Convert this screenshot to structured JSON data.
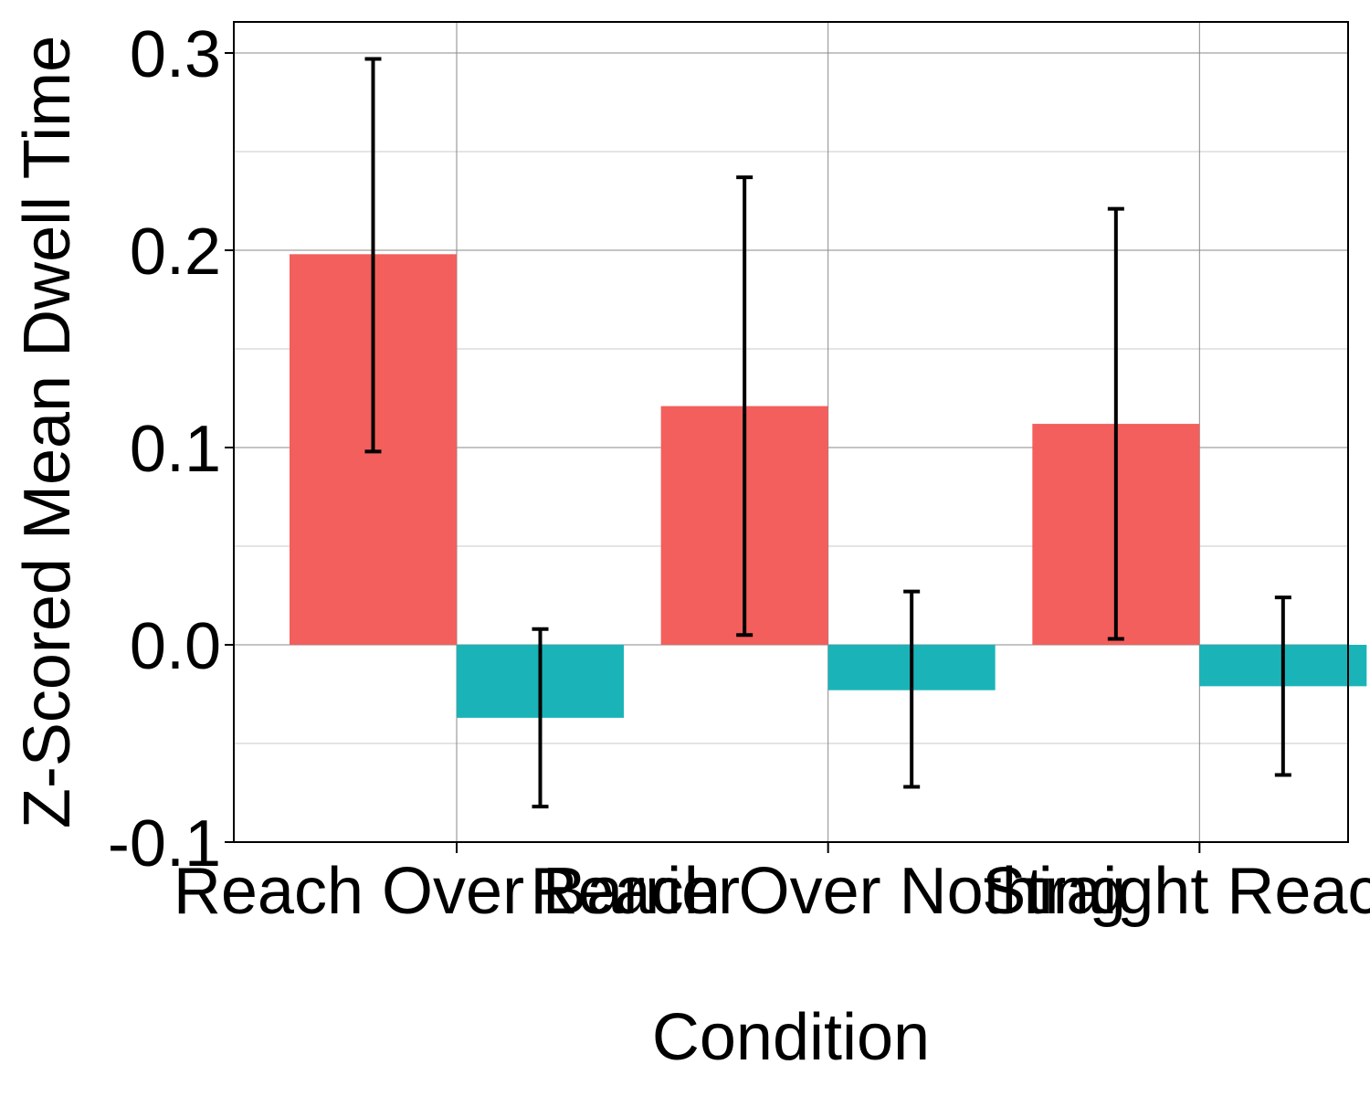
{
  "chart_data": {
    "type": "bar",
    "title": "",
    "xlabel": "Condition",
    "ylabel": "Z-Scored Mean Dwell Time",
    "categories": [
      "Reach Over Barrier",
      "Reach Over Nothing",
      "Straight Reach"
    ],
    "ylim": [
      -0.1,
      0.3
    ],
    "yticks": [
      "-0.1",
      "0.0",
      "0.1",
      "0.2",
      "0.3"
    ],
    "grid": true,
    "legend": "none",
    "series": [
      {
        "color": "#F25F5C",
        "values": [
          0.198,
          0.121,
          0.112
        ],
        "error_low": [
          0.098,
          0.005,
          0.003
        ],
        "error_high": [
          0.297,
          0.237,
          0.221
        ]
      },
      {
        "color": "#1AB4B8",
        "values": [
          -0.037,
          -0.023,
          -0.021
        ],
        "error_low": [
          -0.082,
          -0.072,
          -0.066
        ],
        "error_high": [
          0.008,
          0.027,
          0.024
        ]
      }
    ]
  }
}
